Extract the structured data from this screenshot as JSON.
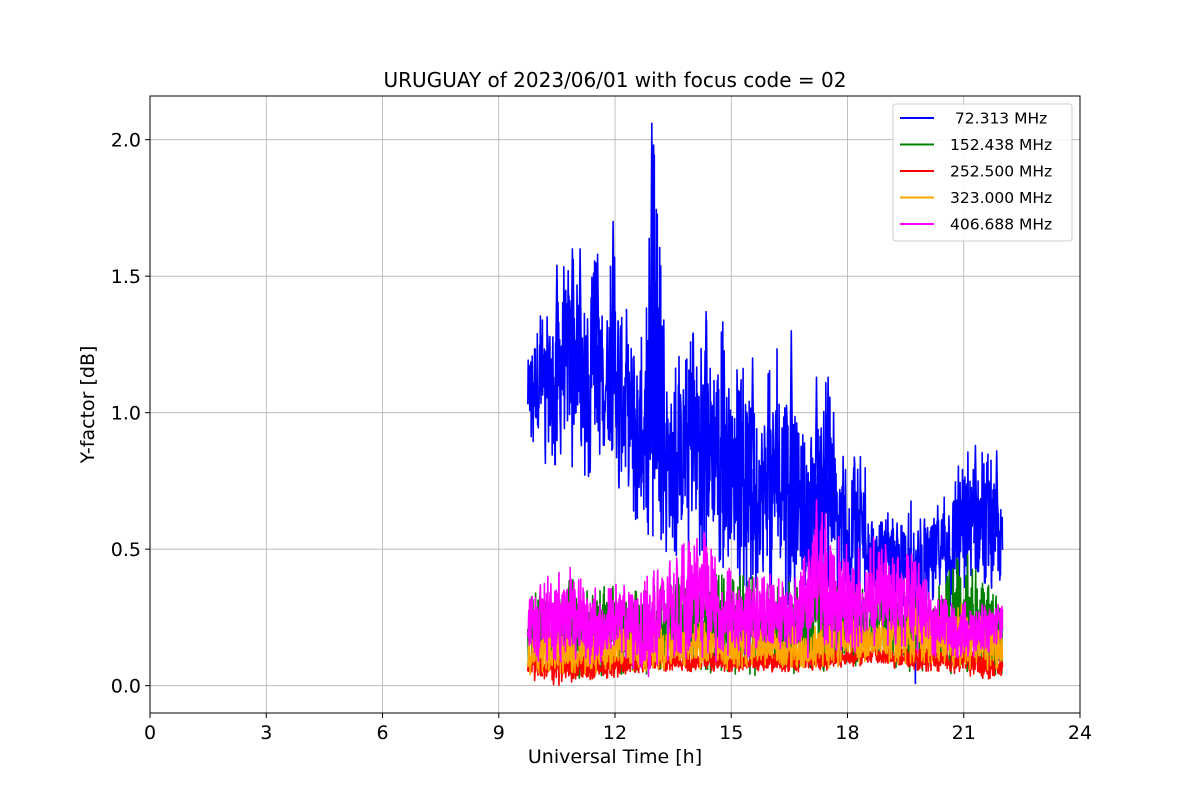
{
  "chart_data": {
    "type": "line",
    "title": "URUGUAY of 2023/06/01 with focus code = 02",
    "xlabel": "Universal Time [h]",
    "ylabel": "Y-factor [dB]",
    "xlim": [
      0,
      24
    ],
    "ylim": [
      -0.1,
      2.16
    ],
    "xticks": [
      0,
      3,
      6,
      9,
      12,
      15,
      18,
      21,
      24
    ],
    "xtick_labels": [
      "0",
      "3",
      "6",
      "9",
      "12",
      "15",
      "18",
      "21",
      "24"
    ],
    "yticks": [
      0.0,
      0.5,
      1.0,
      1.5,
      2.0
    ],
    "ytick_labels": [
      "0.0",
      "0.5",
      "1.0",
      "1.5",
      "2.0"
    ],
    "grid": true,
    "legend_position": "top-right",
    "series": [
      {
        "name": " 72.313 MHz",
        "color": "#0000ff",
        "x": [
          9.75,
          10.0,
          10.25,
          10.5,
          10.75,
          11.0,
          11.25,
          11.5,
          11.75,
          12.0,
          12.25,
          12.5,
          12.75,
          13.0,
          13.25,
          13.5,
          13.75,
          14.0,
          14.25,
          14.5,
          14.75,
          15.0,
          15.25,
          15.5,
          15.75,
          16.0,
          16.25,
          16.5,
          16.75,
          17.0,
          17.25,
          17.5,
          17.75,
          18.0,
          18.25,
          18.5,
          18.75,
          19.0,
          19.25,
          19.5,
          19.75,
          20.0,
          20.25,
          20.5,
          20.75,
          21.0,
          21.25,
          21.5,
          21.75,
          22.0
        ],
        "min": [
          0.9,
          0.85,
          0.78,
          0.8,
          0.78,
          0.8,
          0.75,
          0.78,
          0.8,
          0.65,
          0.6,
          0.55,
          0.5,
          0.42,
          0.45,
          0.4,
          0.45,
          0.45,
          0.42,
          0.4,
          0.42,
          0.4,
          0.35,
          0.32,
          0.35,
          0.3,
          0.3,
          0.28,
          0.3,
          0.28,
          0.25,
          0.3,
          0.28,
          0.25,
          0.28,
          0.3,
          0.3,
          0.25,
          0.28,
          0.25,
          0.0,
          0.28,
          0.3,
          0.3,
          0.28,
          0.3,
          0.3,
          0.3,
          0.28,
          0.3
        ],
        "max": [
          1.25,
          1.41,
          1.38,
          1.54,
          1.6,
          1.6,
          1.4,
          1.58,
          1.45,
          1.7,
          1.42,
          1.4,
          1.25,
          2.06,
          1.35,
          1.15,
          1.25,
          1.37,
          1.35,
          1.37,
          1.37,
          1.14,
          1.18,
          1.2,
          1.1,
          1.2,
          1.25,
          1.3,
          1.05,
          0.9,
          1.13,
          1.13,
          0.92,
          0.86,
          0.85,
          0.85,
          0.6,
          0.64,
          0.6,
          0.65,
          0.7,
          0.65,
          0.65,
          0.75,
          0.8,
          0.88,
          0.85,
          0.88,
          0.86,
          0.7
        ],
        "spikes": [
          [
            10.5,
            1.54
          ],
          [
            10.9,
            1.6
          ],
          [
            11.1,
            1.6
          ],
          [
            11.55,
            1.58
          ],
          [
            11.95,
            1.7
          ],
          [
            12.95,
            2.06
          ],
          [
            14.35,
            1.37
          ],
          [
            15.55,
            1.2
          ],
          [
            16.55,
            1.3
          ],
          [
            17.2,
            1.13
          ],
          [
            17.5,
            1.13
          ],
          [
            21.3,
            0.88
          ],
          [
            21.85,
            0.86
          ]
        ]
      },
      {
        "name": "152.438 MHz",
        "color": "#008000",
        "x": [
          9.75,
          10.5,
          11.25,
          12.0,
          12.75,
          13.5,
          14.25,
          15.0,
          15.75,
          16.5,
          17.25,
          18.0,
          18.75,
          19.5,
          20.25,
          21.0,
          21.75,
          22.0
        ],
        "min": [
          0.03,
          0.02,
          0.02,
          0.04,
          0.04,
          0.05,
          0.05,
          0.04,
          0.03,
          0.04,
          0.05,
          0.05,
          0.06,
          0.05,
          0.04,
          0.03,
          0.03,
          0.04
        ],
        "max": [
          0.32,
          0.4,
          0.38,
          0.38,
          0.35,
          0.4,
          0.4,
          0.42,
          0.4,
          0.38,
          0.42,
          0.35,
          0.38,
          0.35,
          0.35,
          0.5,
          0.35,
          0.3
        ]
      },
      {
        "name": "252.500 MHz",
        "color": "#ff0000",
        "x": [
          9.75,
          10.5,
          11.25,
          12.0,
          12.75,
          13.5,
          14.25,
          15.0,
          15.75,
          16.5,
          17.25,
          18.0,
          18.75,
          19.5,
          20.25,
          21.0,
          21.75,
          22.0
        ],
        "min": [
          0.02,
          0.0,
          0.02,
          0.03,
          0.05,
          0.05,
          0.05,
          0.05,
          0.05,
          0.05,
          0.05,
          0.06,
          0.07,
          0.06,
          0.05,
          0.04,
          0.02,
          0.04
        ],
        "max": [
          0.12,
          0.14,
          0.12,
          0.12,
          0.13,
          0.13,
          0.13,
          0.13,
          0.13,
          0.13,
          0.14,
          0.14,
          0.15,
          0.14,
          0.14,
          0.14,
          0.12,
          0.1
        ]
      },
      {
        "name": "323.000 MHz",
        "color": "#ffa500",
        "x": [
          9.75,
          10.5,
          11.25,
          12.0,
          12.75,
          13.5,
          14.25,
          15.0,
          15.75,
          16.5,
          17.25,
          18.0,
          18.75,
          19.5,
          20.25,
          21.0,
          21.75,
          22.0
        ],
        "min": [
          0.04,
          0.04,
          0.04,
          0.05,
          0.05,
          0.06,
          0.06,
          0.06,
          0.06,
          0.06,
          0.06,
          0.07,
          0.08,
          0.08,
          0.07,
          0.06,
          0.05,
          0.05
        ],
        "max": [
          0.2,
          0.22,
          0.2,
          0.22,
          0.2,
          0.22,
          0.24,
          0.22,
          0.22,
          0.22,
          0.22,
          0.25,
          0.25,
          0.3,
          0.3,
          0.3,
          0.25,
          0.2
        ]
      },
      {
        "name": "406.688 MHz",
        "color": "#ff00ff",
        "x": [
          9.75,
          10.25,
          10.75,
          11.25,
          11.75,
          12.25,
          12.75,
          13.25,
          13.75,
          14.25,
          14.75,
          15.25,
          15.75,
          16.25,
          16.75,
          17.25,
          17.75,
          18.25,
          18.75,
          19.25,
          19.75,
          20.25,
          20.75,
          21.25,
          21.75,
          22.0
        ],
        "min": [
          0.1,
          0.08,
          0.08,
          0.08,
          0.08,
          0.1,
          0.0,
          0.08,
          0.1,
          0.1,
          0.08,
          0.1,
          0.1,
          0.1,
          0.1,
          0.1,
          0.12,
          0.12,
          0.14,
          0.14,
          0.12,
          0.1,
          0.1,
          0.1,
          0.12,
          0.12
        ],
        "max": [
          0.32,
          0.4,
          0.45,
          0.38,
          0.35,
          0.4,
          0.42,
          0.48,
          0.52,
          0.56,
          0.45,
          0.4,
          0.42,
          0.4,
          0.4,
          0.68,
          0.55,
          0.5,
          0.55,
          0.48,
          0.5,
          0.35,
          0.3,
          0.32,
          0.3,
          0.3
        ],
        "spikes": [
          [
            17.2,
            0.68
          ],
          [
            14.3,
            0.56
          ],
          [
            13.9,
            0.52
          ]
        ]
      }
    ]
  }
}
